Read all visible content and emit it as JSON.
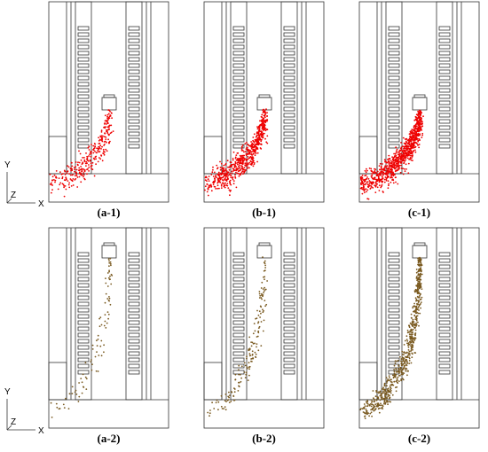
{
  "panels": [
    {
      "label": "(a-1)"
    },
    {
      "label": "(b-1)"
    },
    {
      "label": "(c-1)"
    },
    {
      "label": "(a-2)"
    },
    {
      "label": "(b-2)"
    },
    {
      "label": "(c-2)"
    }
  ],
  "axes": [
    {
      "y": "Y",
      "z": "Z",
      "x": "X"
    },
    {
      "y": "Y",
      "z": "Z",
      "x": "X"
    }
  ]
}
